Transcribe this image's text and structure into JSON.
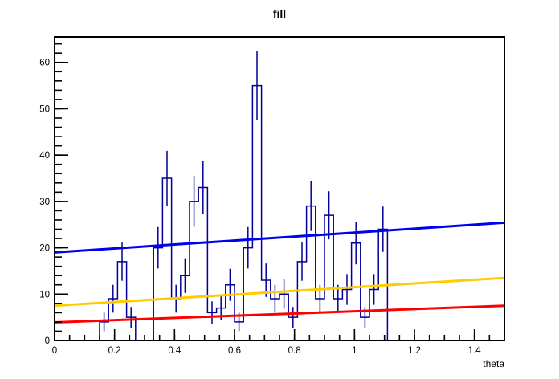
{
  "title": "fill",
  "x_axis": {
    "label": "theta",
    "min": 0,
    "max": 1.5,
    "minor_step": 0.05,
    "major_ticks": [
      {
        "v": 0,
        "label": "0"
      },
      {
        "v": 0.2,
        "label": "0.2"
      },
      {
        "v": 0.4,
        "label": "0.4"
      },
      {
        "v": 0.6,
        "label": "0.6"
      },
      {
        "v": 0.8,
        "label": "0.8"
      },
      {
        "v": 1.0,
        "label": "1"
      },
      {
        "v": 1.2,
        "label": "1.2"
      },
      {
        "v": 1.4,
        "label": "1.4"
      }
    ]
  },
  "y_axis": {
    "min": 0,
    "max": 65.5,
    "minor_step": 2,
    "major_ticks": [
      {
        "v": 0,
        "label": "0"
      },
      {
        "v": 10,
        "label": "10"
      },
      {
        "v": 20,
        "label": "20"
      },
      {
        "v": 30,
        "label": "30"
      },
      {
        "v": 40,
        "label": "40"
      },
      {
        "v": 50,
        "label": "50"
      },
      {
        "v": 60,
        "label": "60"
      }
    ]
  },
  "chart_data": {
    "type": "bar",
    "subtype": "histogram-with-error-bars-and-fit-lines",
    "title": "fill",
    "xlabel": "theta",
    "ylabel": "",
    "xlim": [
      0,
      1.5
    ],
    "ylim": [
      0,
      65.5
    ],
    "grid": false,
    "legend": false,
    "histogram": {
      "name": "fill",
      "color": "#000099",
      "bin_start": 0,
      "bin_width": 0.03,
      "n_bins": 50,
      "counts": [
        0,
        0,
        0,
        0,
        0,
        4,
        9,
        17,
        5,
        0,
        0,
        20,
        35,
        9,
        14,
        30,
        33,
        6,
        7,
        12,
        4,
        20,
        55,
        13,
        9,
        10,
        5,
        17,
        29,
        9,
        27,
        9,
        11,
        21,
        5,
        11,
        24,
        0,
        0,
        0,
        0,
        0,
        0,
        0,
        0,
        0,
        0,
        0,
        0,
        0
      ],
      "errors": "sqrt(count)"
    },
    "lines": [
      {
        "name": "blue-fit-line",
        "color": "#0000f0",
        "x": [
          0,
          1.5
        ],
        "y": [
          19.0,
          25.4
        ]
      },
      {
        "name": "yellow-fit-line",
        "color": "#ffcc00",
        "x": [
          0,
          1.5
        ],
        "y": [
          7.5,
          13.5
        ]
      },
      {
        "name": "red-fit-line",
        "color": "#ff0000",
        "x": [
          0,
          1.5
        ],
        "y": [
          3.9,
          7.5
        ]
      }
    ]
  },
  "colors": {
    "histogram": "#000099",
    "line_blue": "#0000f0",
    "line_yellow": "#ffcc00",
    "line_red": "#ff0000",
    "axis": "#000000",
    "background": "#ffffff"
  }
}
